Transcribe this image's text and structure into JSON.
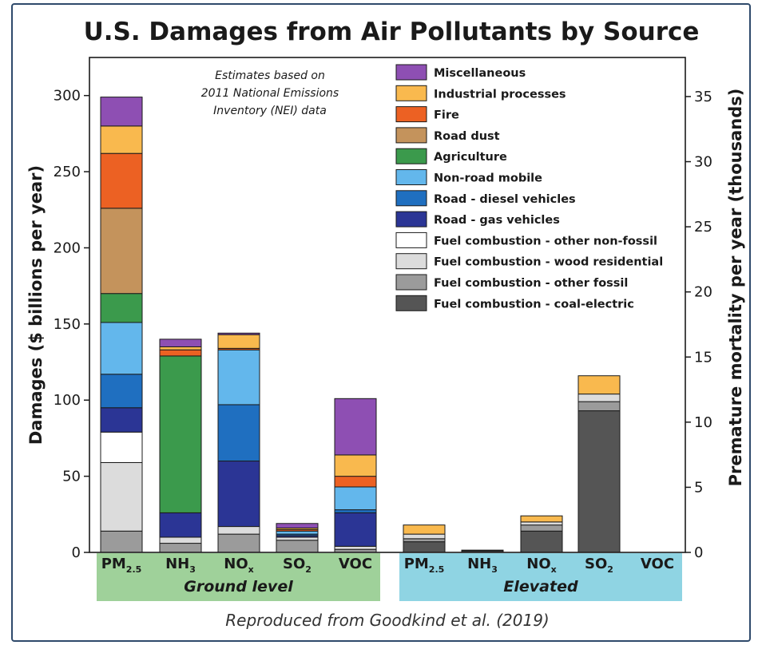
{
  "chart_data": {
    "type": "bar",
    "stacked": true,
    "title": "U.S. Damages from Air Pollutants by Source",
    "ylabel": "Damages ($ billions per year)",
    "y2label": "Premature mortality per year (thousands)",
    "ylim": [
      0,
      325
    ],
    "yticks": [
      0,
      50,
      100,
      150,
      200,
      250,
      300
    ],
    "y2lim": [
      0,
      38
    ],
    "y2ticks": [
      0,
      5,
      10,
      15,
      20,
      25,
      30,
      35
    ],
    "grid": false,
    "legend_position": "top-right",
    "note_lines": [
      "Estimates based on",
      "2011 National Emissions",
      "Inventory (NEI) data"
    ],
    "caption": "Reproduced from Goodkind et al. (2019)",
    "categories": [
      {
        "base": "PM",
        "sub": "2.5",
        "group": "Ground level"
      },
      {
        "base": "NH",
        "sub": "3",
        "group": "Ground level"
      },
      {
        "base": "NO",
        "sub": "x",
        "group": "Ground level"
      },
      {
        "base": "SO",
        "sub": "2",
        "group": "Ground level"
      },
      {
        "base": "VOC",
        "sub": "",
        "group": "Ground level"
      },
      {
        "base": "PM",
        "sub": "2.5",
        "group": "Elevated"
      },
      {
        "base": "NH",
        "sub": "3",
        "group": "Elevated"
      },
      {
        "base": "NO",
        "sub": "x",
        "group": "Elevated"
      },
      {
        "base": "SO",
        "sub": "2",
        "group": "Elevated"
      },
      {
        "base": "VOC",
        "sub": "",
        "group": "Elevated"
      }
    ],
    "groups": [
      {
        "name": "Ground level",
        "from": 0,
        "to": 4,
        "color": "#9fd19a"
      },
      {
        "name": "Elevated",
        "from": 5,
        "to": 9,
        "color": "#8fd4e3"
      }
    ],
    "series": [
      {
        "name": "Fuel combustion - coal-electric",
        "color": "#555555",
        "values": [
          0,
          0,
          0,
          0,
          0,
          7,
          1,
          14,
          93,
          0
        ]
      },
      {
        "name": "Fuel combustion - other fossil",
        "color": "#9b9b9b",
        "values": [
          14,
          6,
          12,
          8,
          2,
          2,
          0.5,
          4,
          6,
          0
        ]
      },
      {
        "name": "Fuel combustion - wood residential",
        "color": "#dcdcdc",
        "values": [
          45,
          4,
          5,
          2,
          2,
          3,
          0,
          2,
          5,
          0
        ]
      },
      {
        "name": "Fuel combustion - other non-fossil",
        "color": "#ffffff",
        "values": [
          20,
          0,
          0,
          0,
          0,
          0,
          0,
          0,
          0,
          0
        ]
      },
      {
        "name": "Road - gas vehicles",
        "color": "#2b3595",
        "values": [
          16,
          16,
          43,
          1,
          22,
          0,
          0,
          0,
          0,
          0
        ]
      },
      {
        "name": "Road - diesel vehicles",
        "color": "#1f6fc0",
        "values": [
          22,
          0,
          37,
          1,
          2,
          0,
          0,
          0,
          0,
          0
        ]
      },
      {
        "name": "Non-road mobile",
        "color": "#63b7ec",
        "values": [
          34,
          0,
          36,
          2,
          15,
          0,
          0,
          0,
          0,
          0
        ]
      },
      {
        "name": "Agriculture",
        "color": "#3b9a4c",
        "values": [
          19,
          103,
          0,
          0,
          0,
          0,
          0,
          0,
          0,
          0
        ]
      },
      {
        "name": "Road dust",
        "color": "#c4935c",
        "values": [
          56,
          0,
          0,
          0,
          0,
          0,
          0,
          0,
          0,
          0
        ]
      },
      {
        "name": "Fire",
        "color": "#ec6123",
        "values": [
          36,
          4,
          1,
          1,
          7,
          0,
          0,
          0,
          0,
          0
        ]
      },
      {
        "name": "Industrial processes",
        "color": "#f9b94e",
        "values": [
          18,
          2,
          9,
          1,
          14,
          6,
          0,
          4,
          12,
          0
        ]
      },
      {
        "name": "Miscellaneous",
        "color": "#8e4fb3",
        "values": [
          19,
          5,
          1,
          3,
          37,
          0,
          0,
          0,
          0,
          0
        ]
      }
    ]
  }
}
